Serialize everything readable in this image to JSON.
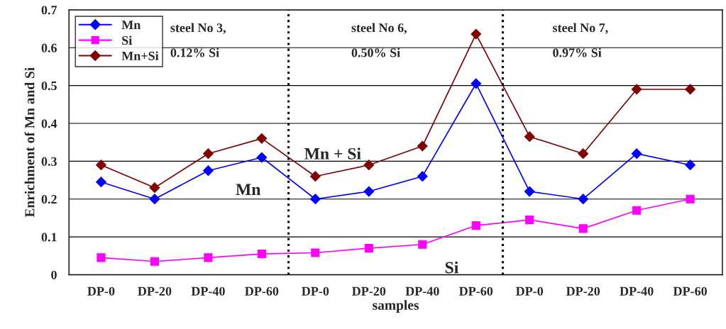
{
  "chart_data": {
    "type": "line",
    "xlabel": "samples",
    "ylabel": "Enrichment of Mn and Si",
    "categories": [
      "DP-0",
      "DP-20",
      "DP-40",
      "DP-60",
      "DP-0",
      "DP-20",
      "DP-40",
      "DP-60",
      "DP-0",
      "DP-20",
      "DP-40",
      "DP-60"
    ],
    "series": [
      {
        "name": "Mn",
        "color": "#0000ff",
        "marker": "diamond",
        "values": [
          0.245,
          0.2,
          0.275,
          0.31,
          0.2,
          0.22,
          0.26,
          0.505,
          0.22,
          0.2,
          0.32,
          0.29
        ]
      },
      {
        "name": "Si",
        "color": "#ff00ff",
        "marker": "square",
        "values": [
          0.045,
          0.035,
          0.045,
          0.055,
          0.058,
          0.07,
          0.08,
          0.13,
          0.145,
          0.122,
          0.17,
          0.2
        ]
      },
      {
        "name": "Mn+Si",
        "color": "#800000",
        "marker": "diamond",
        "values": [
          0.29,
          0.23,
          0.32,
          0.36,
          0.26,
          0.29,
          0.34,
          0.636,
          0.365,
          0.32,
          0.49,
          0.49
        ]
      }
    ],
    "ylim": [
      0,
      0.7
    ],
    "yticks": [
      0,
      0.1,
      0.2,
      0.3,
      0.4,
      0.5,
      0.6,
      0.7
    ],
    "grid": "y",
    "legend": "top left",
    "line_style": "solid",
    "annotations": [
      "steel No 3,\n0.12% Si",
      "steel No 6,\n0.50% Si",
      "steel No 7,\n0.97% Si",
      "Mn + Si",
      "Mn",
      "Si"
    ]
  }
}
